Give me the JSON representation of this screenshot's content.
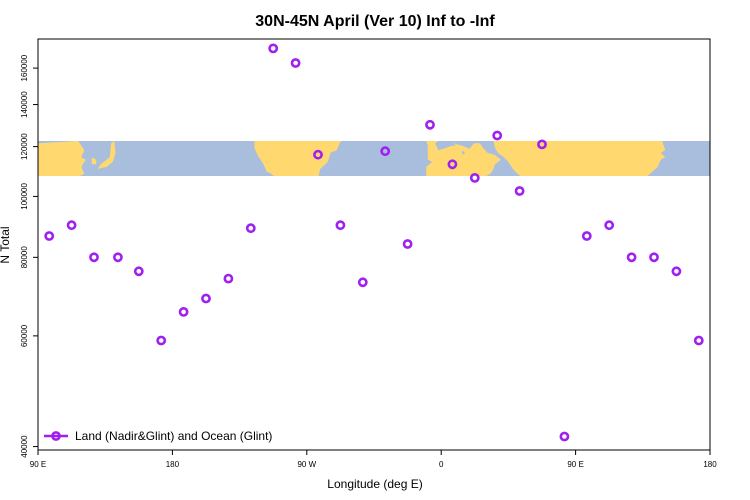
{
  "chart_data": {
    "type": "scatter",
    "title": "30N-45N April (Ver 10)   Inf to -Inf",
    "xlabel": "Longitude (deg E)",
    "ylabel": "N Total",
    "x_tick_labels": [
      "90 E",
      "180",
      "90 W",
      "0",
      "90 E",
      "180"
    ],
    "y_tick_labels": [
      "40000",
      "60000",
      "80000",
      "100000",
      "120000",
      "140000",
      "160000"
    ],
    "y_scale": "log",
    "y_ticks": [
      40000,
      60000,
      80000,
      100000,
      120000,
      140000,
      160000
    ],
    "ylim": [
      39500,
      178000
    ],
    "x_ticks": [
      90,
      180,
      270,
      360,
      450,
      540
    ],
    "xlim": [
      90,
      540
    ],
    "legend": {
      "position": "bottom-left",
      "label": "Land (Nadir&Glint) and Ocean (Glint)"
    },
    "map_band": {
      "lon_from": 90,
      "lon_to": 540,
      "lat_from": 30,
      "lat_to": 45,
      "land_color": "#FFD970",
      "ocean_color": "#A8BEDC"
    },
    "marker_color": "#A020F0",
    "series": [
      {
        "name": "Land (Nadir&Glint) and Ocean (Glint)",
        "x": [
          97.5,
          112.5,
          127.5,
          143.5,
          157.5,
          172.5,
          187.5,
          202.5,
          217.5,
          232.5,
          247.5,
          262.5,
          277.5,
          292.5,
          307.5,
          322.5,
          337.5,
          352.5,
          367.5,
          382.5,
          397.5,
          412.5,
          427.5,
          442.5,
          457.5,
          472.5,
          487.5,
          502.5,
          517.5,
          532.5
        ],
        "y": [
          86500,
          90000,
          80000,
          80000,
          76000,
          59000,
          65500,
          68800,
          74000,
          89000,
          172000,
          163000,
          116500,
          90000,
          73000,
          118000,
          84000,
          130000,
          112500,
          107000,
          125000,
          102000,
          121000,
          41500,
          86500,
          90000,
          80000,
          80000,
          76000,
          59000
        ]
      }
    ]
  }
}
